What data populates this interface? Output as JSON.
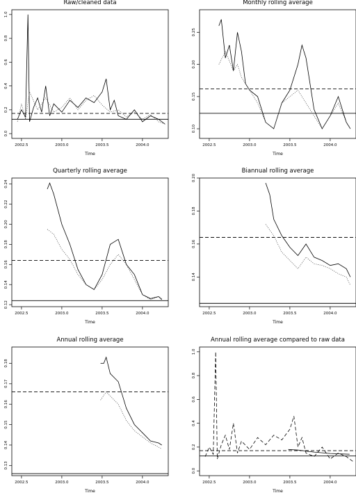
{
  "chart_data": [
    {
      "type": "line",
      "title": "Raw/cleaned data",
      "xlabel": "Time",
      "ylabel": "",
      "xlim": [
        2002.38,
        2004.32
      ],
      "ylim": [
        -0.04,
        1.04
      ],
      "xticks": [
        "2002.5",
        "2003.0",
        "2003.5",
        "2004.0"
      ],
      "yticks": [
        "0.0",
        "0.2",
        "0.4",
        "0.6",
        "0.8",
        "1.0"
      ],
      "grid": false,
      "hlines": [
        {
          "value": 0.17,
          "style": "dashed"
        },
        {
          "value": 0.12,
          "style": "solid"
        }
      ],
      "series": [
        {
          "style": "solid",
          "x": [
            2002.45,
            2002.5,
            2002.55,
            2002.58,
            2002.6,
            2002.65,
            2002.7,
            2002.75,
            2002.8,
            2002.85,
            2002.9,
            2003.0,
            2003.1,
            2003.2,
            2003.3,
            2003.4,
            2003.5,
            2003.55,
            2003.6,
            2003.65,
            2003.7,
            2003.8,
            2003.9,
            2004.0,
            2004.1,
            2004.2,
            2004.28
          ],
          "y": [
            0.12,
            0.2,
            0.14,
            1.0,
            0.1,
            0.22,
            0.3,
            0.18,
            0.4,
            0.15,
            0.25,
            0.18,
            0.28,
            0.22,
            0.3,
            0.26,
            0.35,
            0.46,
            0.2,
            0.28,
            0.15,
            0.12,
            0.2,
            0.1,
            0.15,
            0.12,
            0.08
          ]
        },
        {
          "style": "dotted",
          "x": [
            2002.45,
            2002.5,
            2002.55,
            2002.6,
            2002.7,
            2002.8,
            2002.9,
            2003.0,
            2003.1,
            2003.2,
            2003.3,
            2003.4,
            2003.5,
            2003.6,
            2003.7,
            2003.8,
            2003.9,
            2004.0,
            2004.1,
            2004.2,
            2004.28
          ],
          "y": [
            0.1,
            0.25,
            0.12,
            0.35,
            0.2,
            0.3,
            0.18,
            0.22,
            0.3,
            0.2,
            0.28,
            0.32,
            0.24,
            0.18,
            0.2,
            0.14,
            0.18,
            0.12,
            0.16,
            0.1,
            0.08
          ]
        }
      ]
    },
    {
      "type": "line",
      "title": "Monthly rolling average",
      "xlabel": "Time",
      "ylabel": "",
      "xlim": [
        2002.38,
        2004.32
      ],
      "ylim": [
        0.085,
        0.285
      ],
      "xticks": [
        "2002.5",
        "2003.0",
        "2003.5",
        "2004.0"
      ],
      "yticks": [
        "0.10",
        "0.15",
        "0.20",
        "0.25"
      ],
      "grid": false,
      "hlines": [
        {
          "value": 0.162,
          "style": "dashed"
        },
        {
          "value": 0.124,
          "style": "solid"
        }
      ],
      "series": [
        {
          "style": "solid",
          "x": [
            2002.62,
            2002.65,
            2002.7,
            2002.75,
            2002.8,
            2002.85,
            2002.9,
            2002.95,
            2003.0,
            2003.1,
            2003.2,
            2003.3,
            2003.4,
            2003.5,
            2003.6,
            2003.65,
            2003.7,
            2003.75,
            2003.8,
            2003.9,
            2004.0,
            2004.1,
            2004.2,
            2004.25
          ],
          "y": [
            0.26,
            0.27,
            0.21,
            0.23,
            0.19,
            0.25,
            0.22,
            0.17,
            0.16,
            0.15,
            0.11,
            0.1,
            0.14,
            0.16,
            0.2,
            0.23,
            0.21,
            0.17,
            0.13,
            0.1,
            0.12,
            0.15,
            0.11,
            0.1
          ]
        },
        {
          "style": "dotted",
          "x": [
            2002.62,
            2002.7,
            2002.8,
            2002.85,
            2002.9,
            2003.0,
            2003.1,
            2003.2,
            2003.3,
            2003.4,
            2003.5,
            2003.6,
            2003.7,
            2003.8,
            2003.9,
            2004.0,
            2004.1,
            2004.2,
            2004.25
          ],
          "y": [
            0.2,
            0.22,
            0.19,
            0.2,
            0.18,
            0.16,
            0.14,
            0.11,
            0.1,
            0.14,
            0.15,
            0.16,
            0.14,
            0.12,
            0.1,
            0.12,
            0.14,
            0.11,
            0.1
          ]
        }
      ]
    },
    {
      "type": "line",
      "title": "Quarterly rolling average",
      "xlabel": "Time",
      "ylabel": "",
      "xlim": [
        2002.38,
        2004.32
      ],
      "ylim": [
        0.118,
        0.246
      ],
      "xticks": [
        "2002.5",
        "2003.0",
        "2003.5",
        "2004.0"
      ],
      "yticks": [
        "0.12",
        "0.14",
        "0.16",
        "0.18",
        "0.20",
        "0.22",
        "0.24"
      ],
      "grid": false,
      "hlines": [
        {
          "value": 0.164,
          "style": "dashed"
        },
        {
          "value": 0.124,
          "style": "solid"
        }
      ],
      "series": [
        {
          "style": "solid",
          "x": [
            2002.82,
            2002.85,
            2002.9,
            2003.0,
            2003.1,
            2003.2,
            2003.3,
            2003.4,
            2003.5,
            2003.6,
            2003.7,
            2003.8,
            2003.9,
            2004.0,
            2004.1,
            2004.2,
            2004.24
          ],
          "y": [
            0.235,
            0.241,
            0.23,
            0.2,
            0.18,
            0.155,
            0.14,
            0.135,
            0.15,
            0.18,
            0.185,
            0.16,
            0.15,
            0.13,
            0.126,
            0.128,
            0.125
          ]
        },
        {
          "style": "dotted",
          "x": [
            2002.82,
            2002.9,
            2003.0,
            2003.1,
            2003.2,
            2003.3,
            2003.4,
            2003.5,
            2003.6,
            2003.7,
            2003.8,
            2003.9,
            2004.0,
            2004.1,
            2004.2,
            2004.24
          ],
          "y": [
            0.195,
            0.19,
            0.175,
            0.165,
            0.15,
            0.14,
            0.135,
            0.145,
            0.16,
            0.17,
            0.16,
            0.145,
            0.13,
            0.125,
            0.128,
            0.126
          ]
        }
      ]
    },
    {
      "type": "line",
      "title": "Biannual rolling average",
      "xlabel": "Time",
      "ylabel": "",
      "xlim": [
        2002.38,
        2004.32
      ],
      "ylim": [
        0.122,
        0.2
      ],
      "xticks": [
        "2002.5",
        "2003.0",
        "2003.5",
        "2004.0"
      ],
      "yticks": [
        "0.14",
        "0.16",
        "0.18",
        "0.20"
      ],
      "grid": false,
      "hlines": [
        {
          "value": 0.164,
          "style": "dashed"
        },
        {
          "value": 0.124,
          "style": "solid"
        }
      ],
      "series": [
        {
          "style": "solid",
          "x": [
            2003.2,
            2003.25,
            2003.3,
            2003.4,
            2003.5,
            2003.6,
            2003.7,
            2003.8,
            2003.9,
            2004.0,
            2004.1,
            2004.2,
            2004.25
          ],
          "y": [
            0.197,
            0.19,
            0.175,
            0.165,
            0.158,
            0.153,
            0.16,
            0.152,
            0.15,
            0.147,
            0.148,
            0.145,
            0.14
          ]
        },
        {
          "style": "dotted",
          "x": [
            2003.2,
            2003.3,
            2003.4,
            2003.5,
            2003.6,
            2003.7,
            2003.8,
            2003.9,
            2004.0,
            2004.1,
            2004.2,
            2004.25
          ],
          "y": [
            0.172,
            0.165,
            0.155,
            0.15,
            0.145,
            0.152,
            0.148,
            0.147,
            0.145,
            0.142,
            0.14,
            0.135
          ]
        }
      ]
    },
    {
      "type": "line",
      "title": "Annual rolling average",
      "xlabel": "Time",
      "ylabel": "",
      "xlim": [
        2002.38,
        2004.32
      ],
      "ylim": [
        0.125,
        0.188
      ],
      "xticks": [
        "2002.5",
        "2003.0",
        "2003.5",
        "2004.0"
      ],
      "yticks": [
        "0.13",
        "0.14",
        "0.15",
        "0.16",
        "0.17",
        "0.18"
      ],
      "grid": false,
      "hlines": [
        {
          "value": 0.166,
          "style": "dashed"
        },
        {
          "value": 0.126,
          "style": "solid"
        }
      ],
      "series": [
        {
          "style": "solid",
          "x": [
            2003.48,
            2003.52,
            2003.55,
            2003.6,
            2003.7,
            2003.8,
            2003.9,
            2004.0,
            2004.1,
            2004.2,
            2004.24
          ],
          "y": [
            0.18,
            0.18,
            0.183,
            0.175,
            0.171,
            0.158,
            0.15,
            0.146,
            0.142,
            0.141,
            0.14
          ]
        },
        {
          "style": "dotted",
          "x": [
            2003.48,
            2003.55,
            2003.6,
            2003.7,
            2003.8,
            2003.9,
            2004.0,
            2004.1,
            2004.2,
            2004.24
          ],
          "y": [
            0.162,
            0.166,
            0.164,
            0.16,
            0.152,
            0.147,
            0.144,
            0.141,
            0.139,
            0.138
          ]
        }
      ]
    },
    {
      "type": "line",
      "title": "Annual rolling average compared to raw data",
      "xlabel": "Time",
      "ylabel": "",
      "xlim": [
        2002.38,
        2004.32
      ],
      "ylim": [
        -0.04,
        1.04
      ],
      "xticks": [
        "2002.5",
        "2003.0",
        "2003.5",
        "2004.0"
      ],
      "yticks": [
        "0.0",
        "0.2",
        "0.4",
        "0.6",
        "0.8",
        "1.0"
      ],
      "grid": false,
      "hlines": [
        {
          "value": 0.17,
          "style": "dashed"
        },
        {
          "value": 0.125,
          "style": "solid"
        }
      ],
      "series": [
        {
          "style": "dashed",
          "x": [
            2002.45,
            2002.5,
            2002.55,
            2002.58,
            2002.6,
            2002.65,
            2002.7,
            2002.75,
            2002.8,
            2002.85,
            2002.9,
            2003.0,
            2003.1,
            2003.2,
            2003.3,
            2003.4,
            2003.5,
            2003.55,
            2003.6,
            2003.65,
            2003.7,
            2003.8,
            2003.9,
            2004.0,
            2004.1,
            2004.2,
            2004.28
          ],
          "y": [
            0.12,
            0.2,
            0.14,
            1.0,
            0.1,
            0.22,
            0.3,
            0.18,
            0.4,
            0.15,
            0.25,
            0.18,
            0.28,
            0.22,
            0.3,
            0.26,
            0.35,
            0.46,
            0.2,
            0.28,
            0.15,
            0.12,
            0.2,
            0.1,
            0.15,
            0.12,
            0.08
          ]
        },
        {
          "style": "solid",
          "x": [
            2003.48,
            2003.6,
            2003.8,
            2004.0,
            2004.24
          ],
          "y": [
            0.18,
            0.175,
            0.158,
            0.146,
            0.14
          ]
        }
      ]
    }
  ]
}
